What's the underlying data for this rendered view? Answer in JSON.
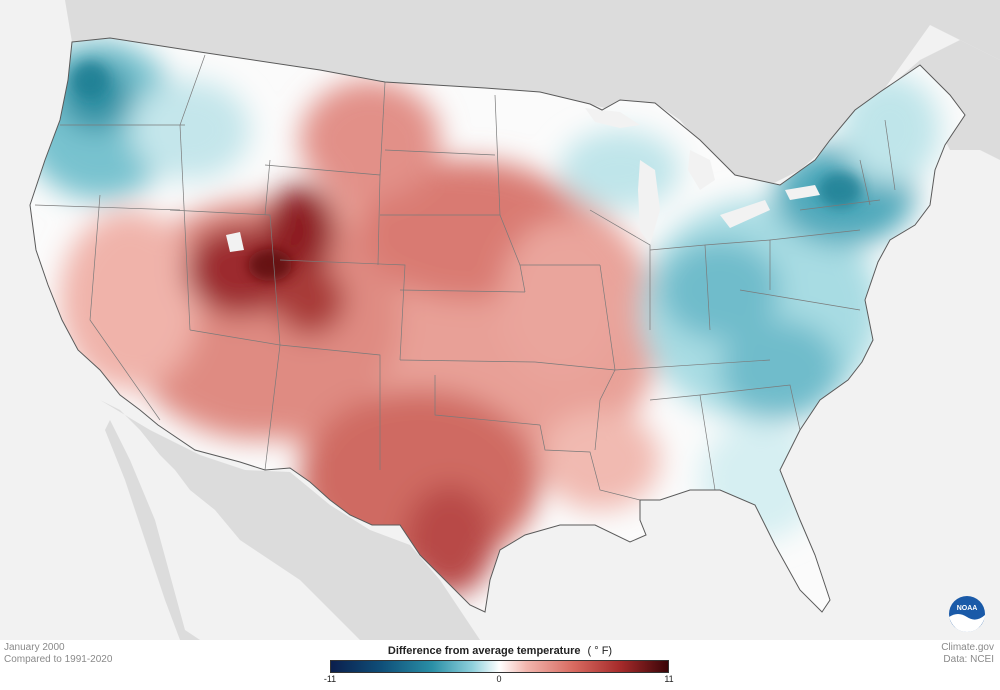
{
  "map": {
    "region": "Contiguous United States",
    "colors": {
      "land_neutral": "#ffffff",
      "outside_land": "#dadada",
      "water": "#f2f2f2",
      "border": "#6a6a6a",
      "warm_dark": "#7a1014",
      "warm_mid": "#c8554f",
      "warm_light": "#f0b3aa",
      "cool_light": "#a9dde4",
      "cool_mid": "#3aa3b3",
      "cool_dark": "#0f6f86"
    }
  },
  "legend": {
    "title": "Difference from average temperature",
    "units": "(  ° F)",
    "ticks": [
      "-11",
      "0",
      "11"
    ]
  },
  "footer": {
    "period": "January 2000",
    "comparison": "Compared to 1991-2020",
    "source": "Climate.gov",
    "data_source": "Data: NCEI"
  },
  "logo": {
    "text": "NOAA",
    "icon": "noaa-logo-icon"
  }
}
